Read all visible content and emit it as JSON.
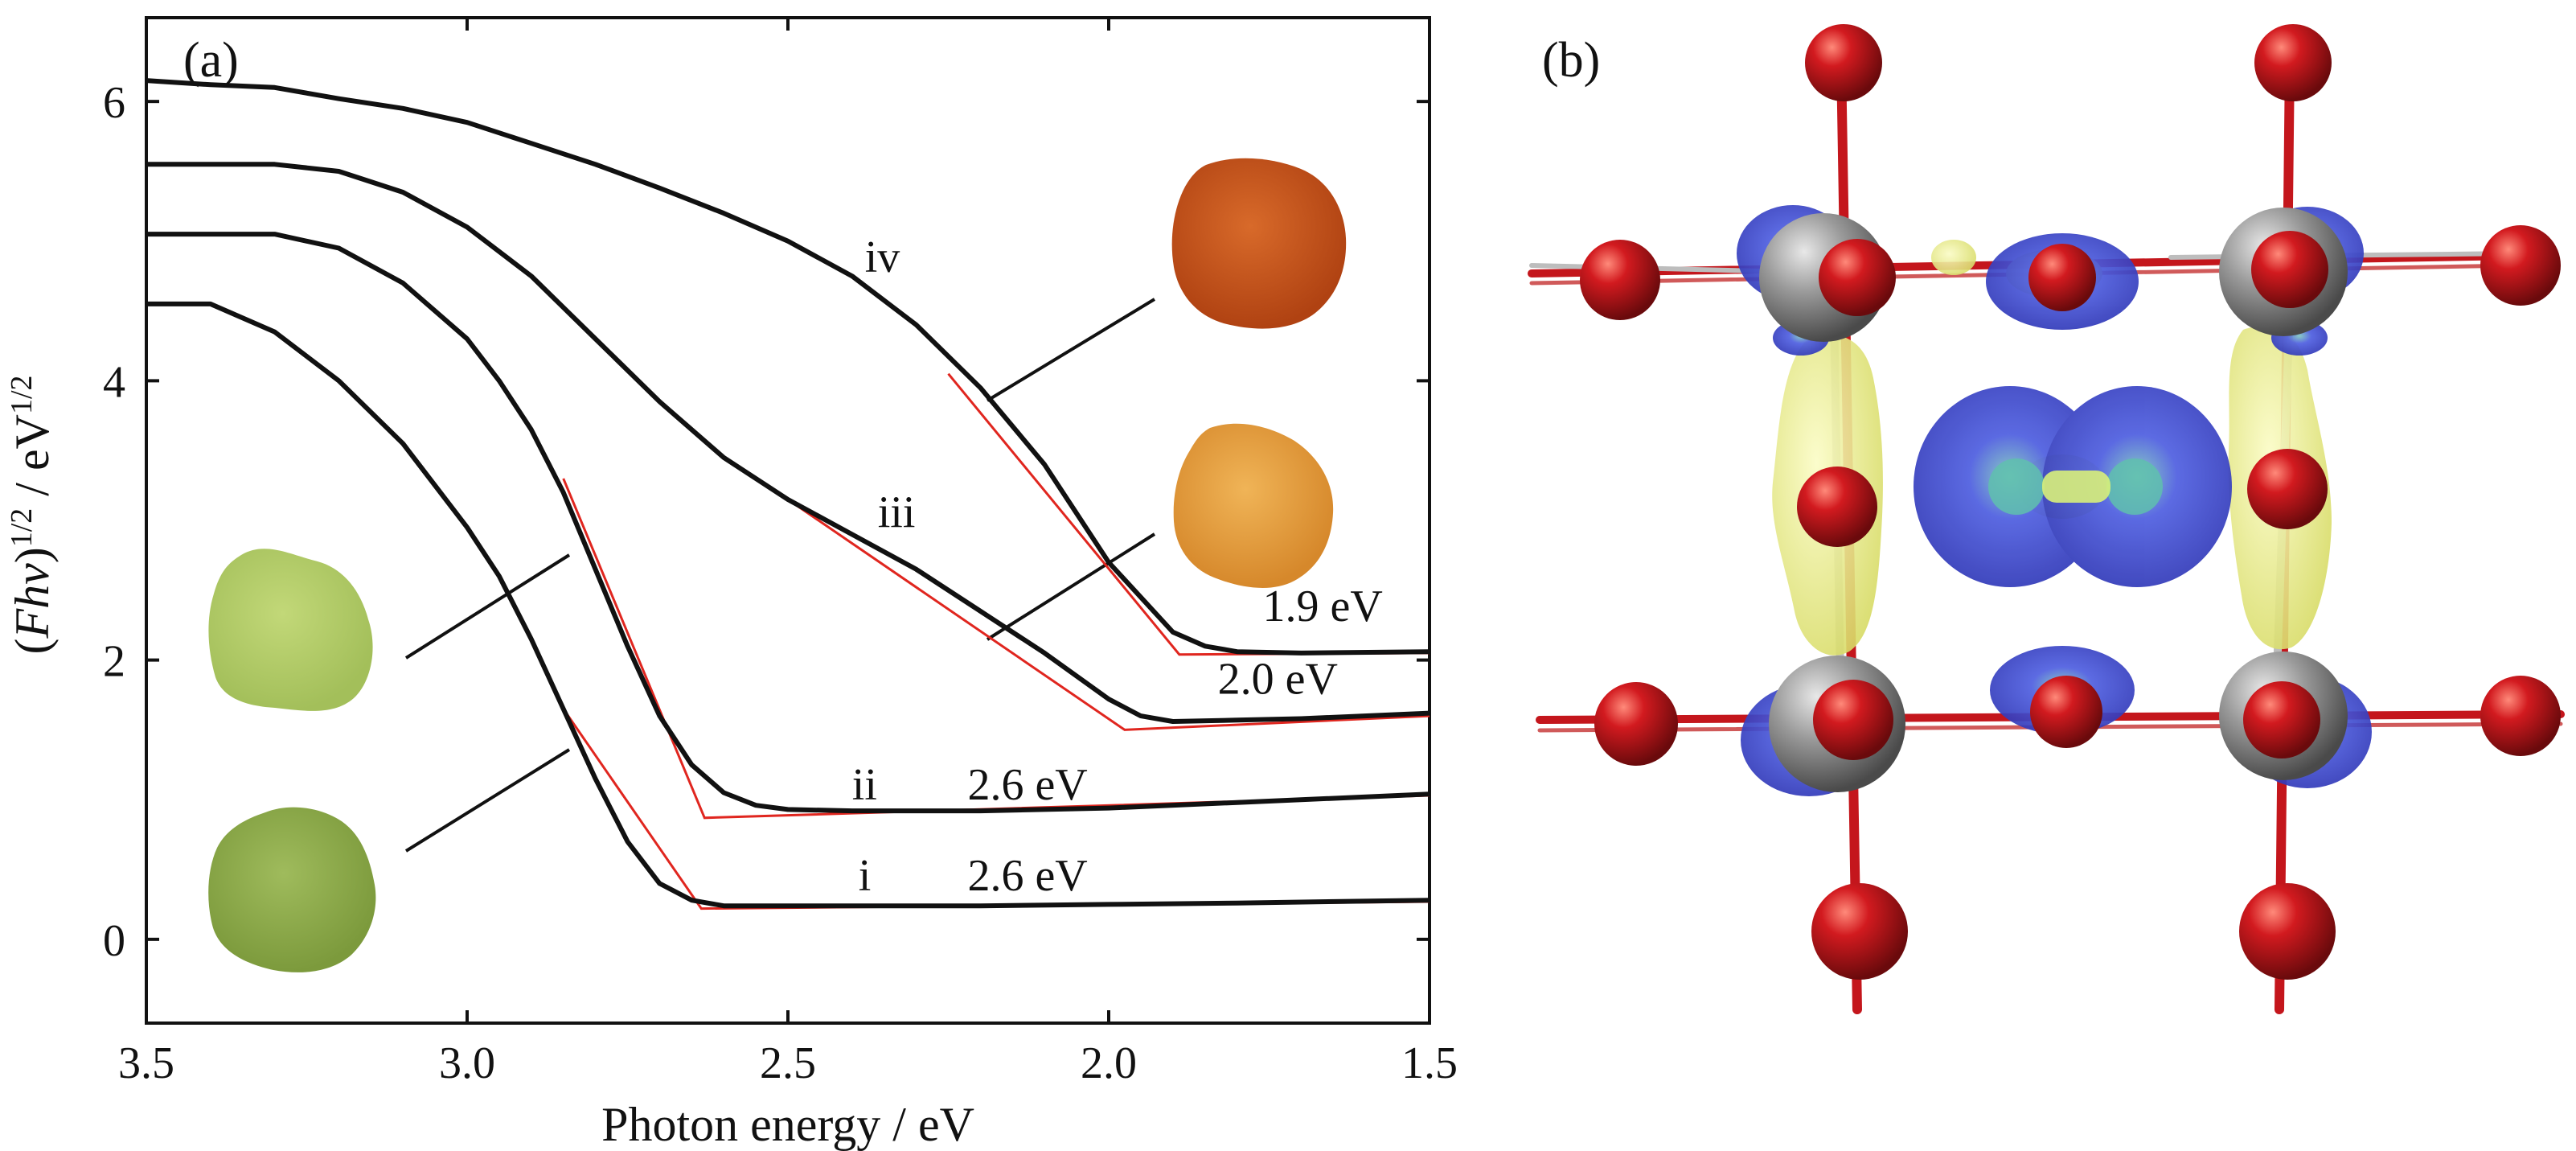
{
  "panels": {
    "a_label": "(a)",
    "b_label": "(b)"
  },
  "colors": {
    "curve": "#111111",
    "fit": "#e0261f",
    "atom_red": "#c4161c",
    "atom_gray": "#8f8f8f",
    "isosurface_blue": "#4a55d6",
    "isosurface_yellow": "#eef08a",
    "swatch_i": "#8eac4c",
    "swatch_ii": "#b3cc6a",
    "swatch_iii": "#e4a03c",
    "swatch_iv": "#c8531b"
  },
  "chart_data": {
    "type": "line",
    "xlabel": "Photon energy / eV",
    "ylabel": "(Fhν)^1/2 / eV^1/2",
    "ylabel_parts": {
      "lead": "(",
      "F": "F",
      "hv": "hν",
      "paren_close": ")",
      "exp1": "1/2",
      "unit": " / eV",
      "exp2": "1/2"
    },
    "xlim": [
      3.5,
      1.5
    ],
    "ylim": [
      -0.6,
      6.6
    ],
    "x_ticks": [
      3.5,
      3.0,
      2.5,
      2.0,
      1.5
    ],
    "x_tick_labels": [
      "3.5",
      "3.0",
      "2.5",
      "2.0",
      "1.5"
    ],
    "y_ticks": [
      0,
      2,
      4,
      6
    ],
    "y_tick_labels": [
      "0",
      "2",
      "4",
      "6"
    ],
    "grid": false,
    "series": [
      {
        "name": "i",
        "x": [
          3.5,
          3.4,
          3.3,
          3.2,
          3.1,
          3.0,
          2.95,
          2.9,
          2.85,
          2.8,
          2.75,
          2.7,
          2.65,
          2.6,
          2.55,
          2.5,
          2.4,
          2.2,
          2.0,
          1.8,
          1.5
        ],
        "y": [
          4.55,
          4.55,
          4.35,
          4.0,
          3.55,
          2.95,
          2.6,
          2.15,
          1.65,
          1.15,
          0.7,
          0.4,
          0.28,
          0.24,
          0.24,
          0.24,
          0.24,
          0.24,
          0.25,
          0.26,
          0.28
        ]
      },
      {
        "name": "ii",
        "x": [
          3.5,
          3.4,
          3.3,
          3.2,
          3.1,
          3.0,
          2.95,
          2.9,
          2.85,
          2.8,
          2.75,
          2.7,
          2.65,
          2.6,
          2.55,
          2.5,
          2.4,
          2.2,
          2.0,
          1.8,
          1.5
        ],
        "y": [
          5.05,
          5.05,
          5.05,
          4.95,
          4.7,
          4.3,
          4.0,
          3.65,
          3.2,
          2.65,
          2.1,
          1.6,
          1.25,
          1.05,
          0.96,
          0.93,
          0.92,
          0.92,
          0.94,
          0.98,
          1.04
        ]
      },
      {
        "name": "iii",
        "x": [
          3.5,
          3.4,
          3.3,
          3.2,
          3.1,
          3.0,
          2.9,
          2.8,
          2.7,
          2.6,
          2.5,
          2.4,
          2.3,
          2.2,
          2.1,
          2.0,
          1.95,
          1.9,
          1.8,
          1.7,
          1.5
        ],
        "y": [
          5.55,
          5.55,
          5.55,
          5.5,
          5.35,
          5.1,
          4.75,
          4.3,
          3.85,
          3.45,
          3.15,
          2.9,
          2.65,
          2.35,
          2.05,
          1.72,
          1.6,
          1.56,
          1.57,
          1.58,
          1.62
        ]
      },
      {
        "name": "iv",
        "x": [
          3.5,
          3.4,
          3.3,
          3.2,
          3.1,
          3.0,
          2.9,
          2.8,
          2.7,
          2.6,
          2.5,
          2.4,
          2.3,
          2.2,
          2.1,
          2.0,
          1.9,
          1.85,
          1.8,
          1.7,
          1.5
        ],
        "y": [
          6.15,
          6.12,
          6.1,
          6.02,
          5.95,
          5.85,
          5.7,
          5.55,
          5.38,
          5.2,
          5.0,
          4.75,
          4.4,
          3.95,
          3.4,
          2.7,
          2.2,
          2.1,
          2.06,
          2.05,
          2.06
        ]
      }
    ],
    "fits": [
      {
        "name": "i",
        "x": [
          2.85,
          2.635,
          1.5
        ],
        "y": [
          1.65,
          0.22,
          0.27
        ]
      },
      {
        "name": "ii",
        "x": [
          2.85,
          2.63,
          1.5
        ],
        "y": [
          3.3,
          0.87,
          1.03
        ]
      },
      {
        "name": "iii",
        "x": [
          2.5,
          1.975,
          1.5
        ],
        "y": [
          3.15,
          1.5,
          1.6
        ]
      },
      {
        "name": "iv",
        "x": [
          2.25,
          1.89,
          1.5
        ],
        "y": [
          4.05,
          2.04,
          2.05
        ]
      }
    ],
    "annotations": [
      {
        "id": "iv_name",
        "text": "iv",
        "x": 2.38,
        "y": 4.78
      },
      {
        "id": "iii_name",
        "text": "iii",
        "x": 2.36,
        "y": 2.95
      },
      {
        "id": "ii_name",
        "text": "ii",
        "x": 2.4,
        "y": 1.0
      },
      {
        "id": "i_name",
        "text": "i",
        "x": 2.39,
        "y": 0.35
      },
      {
        "id": "iv_gap",
        "text": "1.9 eV",
        "x": 1.76,
        "y": 2.28
      },
      {
        "id": "iii_gap",
        "text": "2.0 eV",
        "x": 1.83,
        "y": 1.76
      },
      {
        "id": "ii_gap",
        "text": "2.6 eV",
        "x": 2.22,
        "y": 1.0
      },
      {
        "id": "i_gap",
        "text": "2.6 eV",
        "x": 2.22,
        "y": 0.35
      }
    ]
  }
}
